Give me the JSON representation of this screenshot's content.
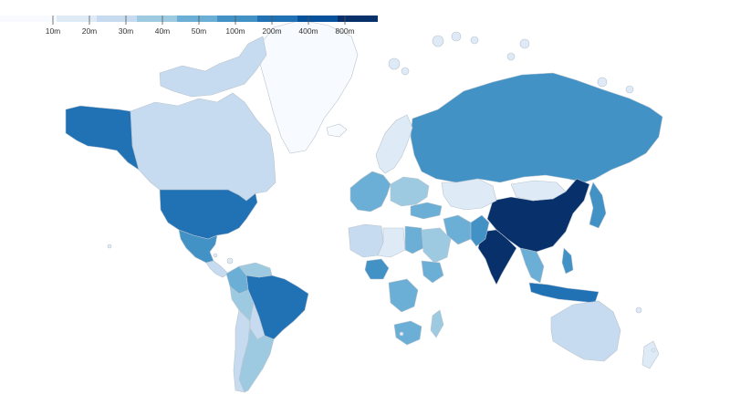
{
  "legend": {
    "ticks": [
      "10m",
      "20m",
      "30m",
      "40m",
      "50m",
      "100m",
      "200m",
      "400m",
      "800m"
    ],
    "colors": [
      "#f7fbff",
      "#deebf7",
      "#c6dbef",
      "#9ecae1",
      "#6baed6",
      "#4292c6",
      "#2171b5",
      "#08519c",
      "#08306b"
    ]
  },
  "regions": [
    {
      "name": "Greenland",
      "color": "#f7fbff"
    },
    {
      "name": "Canada",
      "color": "#c6dbef"
    },
    {
      "name": "Alaska",
      "color": "#2171b5"
    },
    {
      "name": "United States",
      "color": "#2171b5"
    },
    {
      "name": "Mexico",
      "color": "#4292c6"
    },
    {
      "name": "Central America",
      "color": "#c6dbef"
    },
    {
      "name": "Brazil",
      "color": "#2171b5"
    },
    {
      "name": "Colombia",
      "color": "#6baed6"
    },
    {
      "name": "Venezuela",
      "color": "#9ecae1"
    },
    {
      "name": "Peru",
      "color": "#9ecae1"
    },
    {
      "name": "Bolivia",
      "color": "#c6dbef"
    },
    {
      "name": "Argentina",
      "color": "#9ecae1"
    },
    {
      "name": "Chile",
      "color": "#c6dbef"
    },
    {
      "name": "Russia",
      "color": "#4292c6"
    },
    {
      "name": "China",
      "color": "#08306b"
    },
    {
      "name": "India",
      "color": "#08306b"
    },
    {
      "name": "Mongolia",
      "color": "#deebf7"
    },
    {
      "name": "Kazakhstan",
      "color": "#deebf7"
    },
    {
      "name": "Indonesia",
      "color": "#2171b5"
    },
    {
      "name": "Australia",
      "color": "#c6dbef"
    },
    {
      "name": "Japan",
      "color": "#4292c6"
    },
    {
      "name": "Nigeria",
      "color": "#4292c6"
    },
    {
      "name": "Egypt",
      "color": "#6baed6"
    },
    {
      "name": "Ethiopia",
      "color": "#6baed6"
    },
    {
      "name": "South Africa",
      "color": "#6baed6"
    },
    {
      "name": "DR Congo",
      "color": "#6baed6"
    },
    {
      "name": "Algeria",
      "color": "#c6dbef"
    },
    {
      "name": "Libya",
      "color": "#deebf7"
    },
    {
      "name": "Iran",
      "color": "#6baed6"
    },
    {
      "name": "Pakistan",
      "color": "#4292c6"
    },
    {
      "name": "Saudi Arabia",
      "color": "#9ecae1"
    },
    {
      "name": "Turkey",
      "color": "#6baed6"
    },
    {
      "name": "Scandinavia",
      "color": "#deebf7"
    },
    {
      "name": "Western Europe",
      "color": "#6baed6"
    },
    {
      "name": "Eastern Europe",
      "color": "#9ecae1"
    },
    {
      "name": "Southeast Asia",
      "color": "#6baed6"
    },
    {
      "name": "Philippines",
      "color": "#4292c6"
    },
    {
      "name": "Madagascar",
      "color": "#9ecae1"
    },
    {
      "name": "Arctic Islands",
      "color": "#c6dbef"
    },
    {
      "name": "Iceland",
      "color": "#f7fbff"
    },
    {
      "name": "New Zealand",
      "color": "#deebf7"
    }
  ]
}
